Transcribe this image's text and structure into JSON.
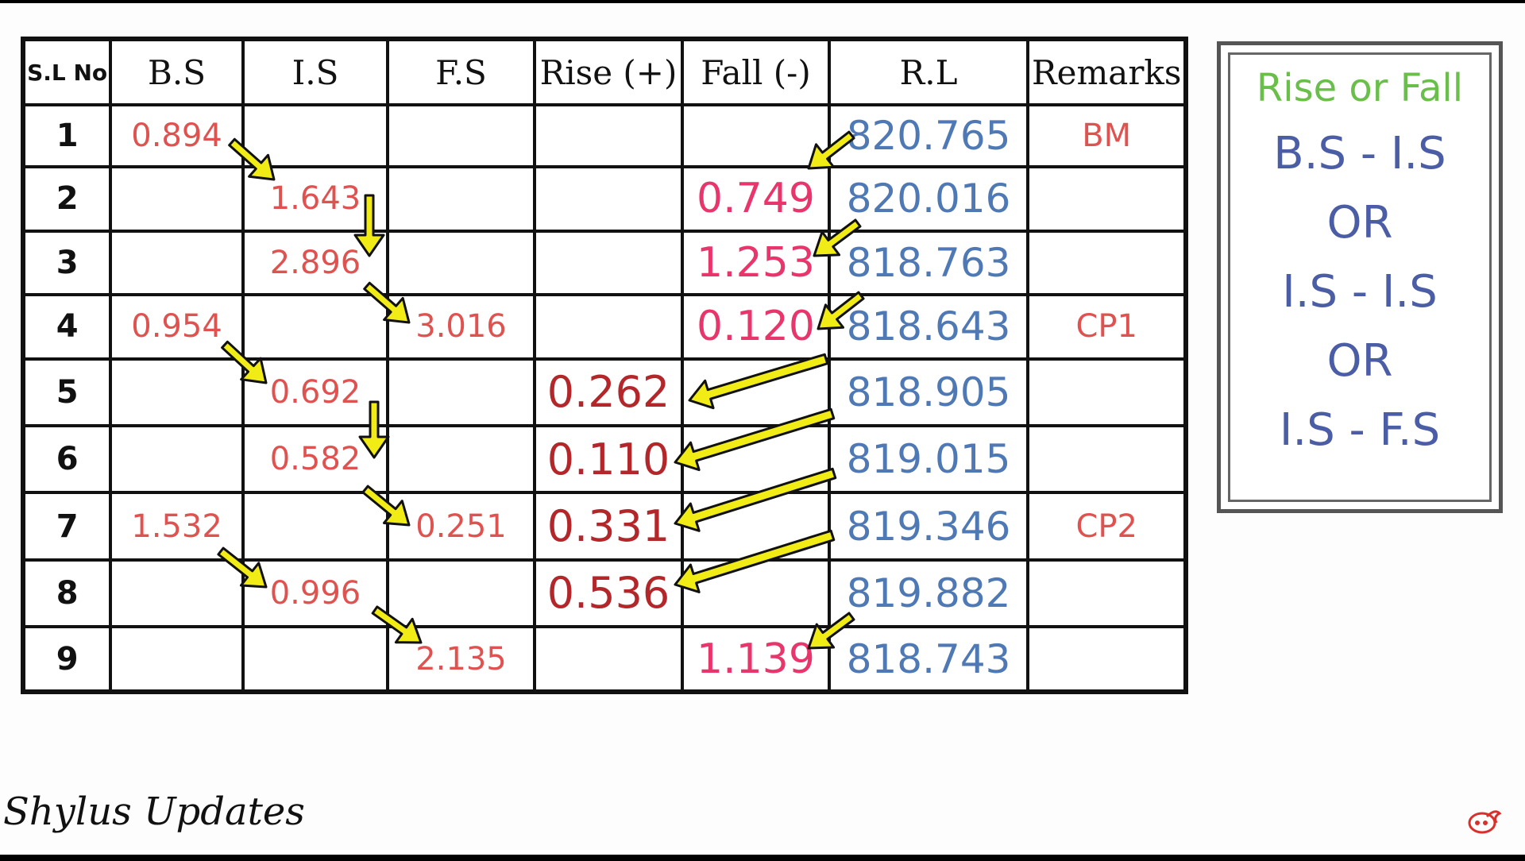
{
  "headers": {
    "sl": "S.L No",
    "bs": "B.S",
    "is": "I.S",
    "fs": "F.S",
    "rise": "Rise (+)",
    "fall": "Fall (-)",
    "rl": "R.L",
    "remarks": "Remarks"
  },
  "rows": [
    {
      "sl": "1",
      "bs": "0.894",
      "is": "",
      "fs": "",
      "rise": "",
      "fall": "",
      "rl": "820.765",
      "remarks": "BM"
    },
    {
      "sl": "2",
      "bs": "",
      "is": "1.643",
      "fs": "",
      "rise": "",
      "fall": "0.749",
      "rl": "820.016",
      "remarks": ""
    },
    {
      "sl": "3",
      "bs": "",
      "is": "2.896",
      "fs": "",
      "rise": "",
      "fall": "1.253",
      "rl": "818.763",
      "remarks": ""
    },
    {
      "sl": "4",
      "bs": "0.954",
      "is": "",
      "fs": "3.016",
      "rise": "",
      "fall": "0.120",
      "rl": "818.643",
      "remarks": "CP1"
    },
    {
      "sl": "5",
      "bs": "",
      "is": "0.692",
      "fs": "",
      "rise": "0.262",
      "fall": "",
      "rl": "818.905",
      "remarks": ""
    },
    {
      "sl": "6",
      "bs": "",
      "is": "0.582",
      "fs": "",
      "rise": "0.110",
      "fall": "",
      "rl": "819.015",
      "remarks": ""
    },
    {
      "sl": "7",
      "bs": "1.532",
      "is": "",
      "fs": "0.251",
      "rise": "0.331",
      "fall": "",
      "rl": "819.346",
      "remarks": "CP2"
    },
    {
      "sl": "8",
      "bs": "",
      "is": "0.996",
      "fs": "",
      "rise": "0.536",
      "fall": "",
      "rl": "819.882",
      "remarks": ""
    },
    {
      "sl": "9",
      "bs": "",
      "is": "",
      "fs": "2.135",
      "rise": "",
      "fall": "1.139",
      "rl": "818.743",
      "remarks": ""
    }
  ],
  "formula": {
    "title": "Rise or Fall",
    "line1": "B.S - I.S",
    "or1": "OR",
    "line2": "I.S - I.S",
    "or2": "OR",
    "line3": "I.S - F.S"
  },
  "brand": "Shylus Updates",
  "colors": {
    "arrow": "#f2ec16",
    "table_text_red": "#e0524f",
    "fall_pink": "#e8356b",
    "rise_dark_red": "#b3262a",
    "rl_blue": "#4f79b4",
    "formula_green": "#6abf4b",
    "formula_blue": "#4a5da5"
  },
  "icons": {
    "arrow": "yellow-arrow-icon",
    "logo": "channel-logo-icon"
  }
}
